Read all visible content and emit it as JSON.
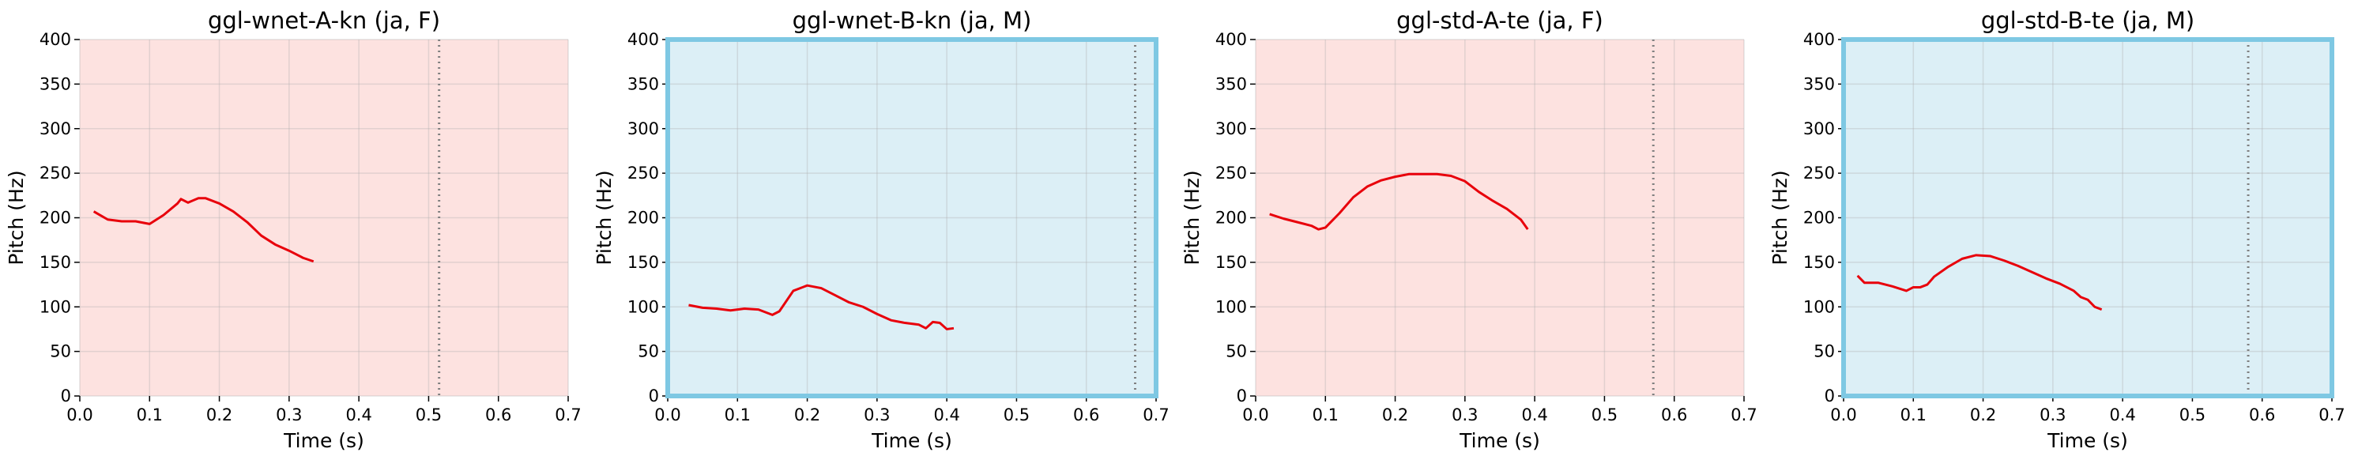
{
  "chart_data": [
    {
      "type": "line",
      "title": "ggl-wnet-A-kn (ja, F)",
      "x_label": "Time (s)",
      "y_label": "Pitch (Hz)",
      "x": [
        0.02,
        0.04,
        0.06,
        0.08,
        0.1,
        0.12,
        0.14,
        0.145,
        0.155,
        0.17,
        0.18,
        0.2,
        0.22,
        0.24,
        0.26,
        0.28,
        0.3,
        0.32,
        0.335
      ],
      "values": [
        207,
        198,
        196,
        196,
        193,
        203,
        216,
        221,
        217,
        222,
        222,
        216,
        207,
        195,
        180,
        170,
        163,
        155,
        151
      ],
      "color": "#e8000b",
      "xlim": [
        0,
        0.7
      ],
      "ylim": [
        0,
        400
      ],
      "xticks": [
        {
          "value": 0,
          "label": "0.0"
        },
        0.1,
        0.2,
        0.3,
        0.4,
        0.5,
        0.6,
        0.7
      ],
      "yticks": [
        0,
        50,
        100,
        150,
        200,
        250,
        300,
        350,
        400
      ],
      "grid": true,
      "background": "#fde2e0",
      "vline": 0.515
    },
    {
      "type": "line",
      "title": "ggl-wnet-B-kn (ja, M)",
      "x_label": "Time (s)",
      "y_label": "Pitch (Hz)",
      "x": [
        0.03,
        0.05,
        0.07,
        0.09,
        0.11,
        0.13,
        0.15,
        0.16,
        0.18,
        0.2,
        0.22,
        0.24,
        0.26,
        0.28,
        0.3,
        0.32,
        0.34,
        0.36,
        0.37,
        0.38,
        0.39,
        0.4,
        0.41
      ],
      "values": [
        102,
        99,
        98,
        96,
        98,
        97,
        91,
        95,
        118,
        124,
        121,
        113,
        105,
        100,
        92,
        85,
        82,
        80,
        76,
        83,
        82,
        75,
        76
      ],
      "color": "#e8000b",
      "xlim": [
        0,
        0.7
      ],
      "ylim": [
        0,
        400
      ],
      "xticks": [
        {
          "value": 0,
          "label": "0.0"
        },
        0.1,
        0.2,
        0.3,
        0.4,
        0.5,
        0.6,
        0.7
      ],
      "yticks": [
        0,
        50,
        100,
        150,
        200,
        250,
        300,
        350,
        400
      ],
      "grid": true,
      "background": "#dceff6",
      "border_color": "#7ec8e3",
      "vline": 0.67
    },
    {
      "type": "line",
      "title": "ggl-std-A-te (ja, F)",
      "x_label": "Time (s)",
      "y_label": "Pitch (Hz)",
      "x": [
        0.02,
        0.04,
        0.06,
        0.08,
        0.09,
        0.1,
        0.12,
        0.14,
        0.16,
        0.18,
        0.2,
        0.22,
        0.24,
        0.26,
        0.28,
        0.3,
        0.32,
        0.34,
        0.36,
        0.38,
        0.39
      ],
      "values": [
        204,
        199,
        195,
        191,
        187,
        189,
        205,
        223,
        235,
        242,
        246,
        249,
        249,
        249,
        247,
        241,
        229,
        219,
        210,
        198,
        187
      ],
      "color": "#e8000b",
      "xlim": [
        0,
        0.7
      ],
      "ylim": [
        0,
        400
      ],
      "xticks": [
        {
          "value": 0,
          "label": "0.0"
        },
        0.1,
        0.2,
        0.3,
        0.4,
        0.5,
        0.6,
        0.7
      ],
      "yticks": [
        0,
        50,
        100,
        150,
        200,
        250,
        300,
        350,
        400
      ],
      "grid": true,
      "background": "#fde2e0",
      "vline": 0.57
    },
    {
      "type": "line",
      "title": "ggl-std-B-te (ja, M)",
      "x_label": "Time (s)",
      "y_label": "Pitch (Hz)",
      "x": [
        0.02,
        0.03,
        0.05,
        0.07,
        0.09,
        0.1,
        0.11,
        0.12,
        0.13,
        0.15,
        0.17,
        0.19,
        0.21,
        0.23,
        0.25,
        0.27,
        0.29,
        0.31,
        0.33,
        0.34,
        0.35,
        0.36,
        0.37
      ],
      "values": [
        135,
        127,
        127,
        123,
        118,
        122,
        122,
        125,
        134,
        145,
        154,
        158,
        157,
        152,
        146,
        139,
        132,
        126,
        118,
        111,
        108,
        100,
        97
      ],
      "color": "#e8000b",
      "xlim": [
        0,
        0.7
      ],
      "ylim": [
        0,
        400
      ],
      "xticks": [
        {
          "value": 0,
          "label": "0.0"
        },
        0.1,
        0.2,
        0.3,
        0.4,
        0.5,
        0.6,
        0.7
      ],
      "yticks": [
        0,
        50,
        100,
        150,
        200,
        250,
        300,
        350,
        400
      ],
      "grid": true,
      "background": "#dceff6",
      "border_color": "#7ec8e3",
      "vline": 0.58
    }
  ]
}
